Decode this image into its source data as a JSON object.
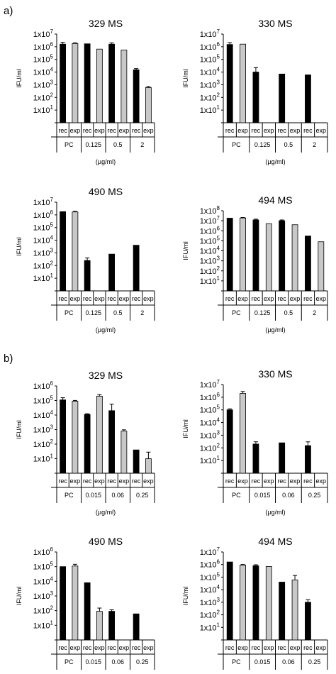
{
  "panels": [
    {
      "label": "a)"
    },
    {
      "label": "b)"
    }
  ],
  "colors": {
    "rec": "#000000",
    "exp": "#c8c8c8",
    "axis": "#000000"
  },
  "chart_data": [
    {
      "panel": "a)",
      "type": "bar",
      "title": "329 MS",
      "ylabel": "IFU/ml",
      "xunit": "(µg/ml)",
      "scale": "log",
      "ylim_exp": [
        0,
        7
      ],
      "yticks": [
        "1x10^1",
        "1x10^2",
        "1x10^3",
        "1x10^4",
        "1x10^5",
        "1x10^6",
        "1x10^7"
      ],
      "groups": [
        "PC",
        "0.125",
        "0.5",
        "2"
      ],
      "subcategories": [
        "rec",
        "exp"
      ],
      "values": [
        [
          1600000.0,
          1800000.0
        ],
        [
          1700000.0,
          650000.0
        ],
        [
          1600000.0,
          550000.0
        ],
        [
          15000.0,
          600.0
        ]
      ],
      "errors": [
        [
          0.15,
          0.05
        ],
        [
          0,
          0
        ],
        [
          0.1,
          0
        ],
        [
          0.1,
          0.08
        ]
      ]
    },
    {
      "panel": "a)",
      "type": "bar",
      "title": "330 MS",
      "ylabel": "IFU/ml",
      "xunit": "(µg/ml)",
      "scale": "log",
      "ylim_exp": [
        0,
        7
      ],
      "yticks": [
        "1x10^1",
        "1x10^2",
        "1x10^3",
        "1x10^4",
        "1x10^5",
        "1x10^6",
        "1x10^7"
      ],
      "groups": [
        "PC",
        "0.125",
        "0.5",
        "2"
      ],
      "subcategories": [
        "rec",
        "exp"
      ],
      "values": [
        [
          1500000.0,
          1600000.0
        ],
        [
          10000.0,
          null
        ],
        [
          7000.0,
          null
        ],
        [
          6000.0,
          null
        ]
      ],
      "errors": [
        [
          0.15,
          0
        ],
        [
          0.35,
          0
        ],
        [
          0,
          0
        ],
        [
          0,
          0
        ]
      ]
    },
    {
      "panel": "a)",
      "type": "bar",
      "title": "490 MS",
      "ylabel": "IFU/ml",
      "xunit": "(µg/ml)",
      "scale": "log",
      "ylim_exp": [
        0,
        7
      ],
      "yticks": [
        "1x10^1",
        "1x10^2",
        "1x10^3",
        "1x10^4",
        "1x10^5",
        "1x10^6",
        "1x10^7"
      ],
      "groups": [
        "PC",
        "0.125",
        "0.5",
        "2"
      ],
      "subcategories": [
        "rec",
        "exp"
      ],
      "values": [
        [
          1800000.0,
          1700000.0
        ],
        [
          250.0,
          null
        ],
        [
          800.0,
          null
        ],
        [
          4000.0,
          null
        ]
      ],
      "errors": [
        [
          0,
          0.05
        ],
        [
          0.2,
          0
        ],
        [
          0,
          0
        ],
        [
          0,
          0
        ]
      ]
    },
    {
      "panel": "a)",
      "type": "bar",
      "title": "494 MS",
      "ylabel": "IFU/ml",
      "xunit": "(µg/ml)",
      "scale": "log",
      "ylim_exp": [
        0,
        8
      ],
      "yticks": [
        "1x10^1",
        "1x10^2",
        "1x10^3",
        "1x10^4",
        "1x10^5",
        "1x10^6",
        "1x10^7",
        "1x10^8"
      ],
      "groups": [
        "PC",
        "0.125",
        "0.5",
        "2"
      ],
      "subcategories": [
        "rec",
        "exp"
      ],
      "values": [
        [
          18000000.0,
          19000000.0
        ],
        [
          12000000.0,
          5000000.0
        ],
        [
          10000000.0,
          4000000.0
        ],
        [
          300000.0,
          80000.0
        ]
      ],
      "errors": [
        [
          0,
          0.05
        ],
        [
          0.08,
          0
        ],
        [
          0.08,
          0
        ],
        [
          0,
          0
        ]
      ]
    },
    {
      "panel": "b)",
      "type": "bar",
      "title": "329 MS",
      "ylabel": "IFU/ml",
      "xunit": "(µg/ml)",
      "scale": "log",
      "ylim_exp": [
        0,
        6
      ],
      "yticks": [
        "1x10^1",
        "1x10^2",
        "1x10^3",
        "1x10^4",
        "1x10^5",
        "1x10^6"
      ],
      "groups": [
        "PC",
        "0.015",
        "0.06",
        "0.25"
      ],
      "subcategories": [
        "rec",
        "exp"
      ],
      "values": [
        [
          110000.0,
          90000.0
        ],
        [
          11000.0,
          200000.0
        ],
        [
          20000.0,
          800.0
        ],
        [
          40.0,
          10.0
        ]
      ],
      "errors": [
        [
          0.15,
          0.05
        ],
        [
          0.05,
          0.1
        ],
        [
          0.45,
          0.08
        ],
        [
          0,
          0.45
        ]
      ]
    },
    {
      "panel": "b)",
      "type": "bar",
      "title": "330 MS",
      "ylabel": "IFU/ml",
      "xunit": "(µg/ml)",
      "scale": "log",
      "ylim_exp": [
        0,
        7
      ],
      "yticks": [
        "1x10^1",
        "1x10^2",
        "1x10^3",
        "1x10^4",
        "1x10^5",
        "1x10^6",
        "1x10^7"
      ],
      "groups": [
        "PC",
        "0.015",
        "0.06",
        "0.25"
      ],
      "subcategories": [
        "rec",
        "exp"
      ],
      "values": [
        [
          100000.0,
          2000000.0
        ],
        [
          200.0,
          null
        ],
        [
          250.0,
          null
        ],
        [
          150.0,
          null
        ]
      ],
      "errors": [
        [
          0.08,
          0.15
        ],
        [
          0.18,
          0
        ],
        [
          0,
          0
        ],
        [
          0.3,
          0
        ]
      ]
    },
    {
      "panel": "b)",
      "type": "bar",
      "title": "490 MS",
      "ylabel": "IFU/ml",
      "xunit": "(µg/ml)",
      "scale": "log",
      "ylim_exp": [
        0,
        6
      ],
      "yticks": [
        "1x10^1",
        "1x10^2",
        "1x10^3",
        "1x10^4",
        "1x10^5",
        "1x10^6"
      ],
      "groups": [
        "PC",
        "0.015",
        "0.06",
        "0.25"
      ],
      "subcategories": [
        "rec",
        "exp"
      ],
      "values": [
        [
          100000.0,
          110000.0
        ],
        [
          8000.0,
          90.0
        ],
        [
          90.0,
          null
        ],
        [
          60.0,
          null
        ]
      ],
      "errors": [
        [
          0,
          0.12
        ],
        [
          0,
          0.22
        ],
        [
          0.1,
          0
        ],
        [
          0,
          0
        ]
      ]
    },
    {
      "panel": "b)",
      "type": "bar",
      "title": "494 MS",
      "ylabel": "IFU/ml",
      "xunit": "(µg/ml)",
      "scale": "log",
      "ylim_exp": [
        0,
        7
      ],
      "yticks": [
        "1x10^1",
        "1x10^2",
        "1x10^3",
        "1x10^4",
        "1x10^5",
        "1x10^6",
        "1x10^7"
      ],
      "groups": [
        "PC",
        "0.015",
        "0.06",
        "0.25"
      ],
      "subcategories": [
        "rec",
        "exp"
      ],
      "values": [
        [
          1600000.0,
          900000.0
        ],
        [
          800000.0,
          700000.0
        ],
        [
          40000.0,
          60000.0
        ],
        [
          1000.0,
          null
        ]
      ],
      "errors": [
        [
          0,
          0.05
        ],
        [
          0.08,
          0
        ],
        [
          0,
          0.35
        ],
        [
          0.2,
          0
        ]
      ]
    }
  ]
}
